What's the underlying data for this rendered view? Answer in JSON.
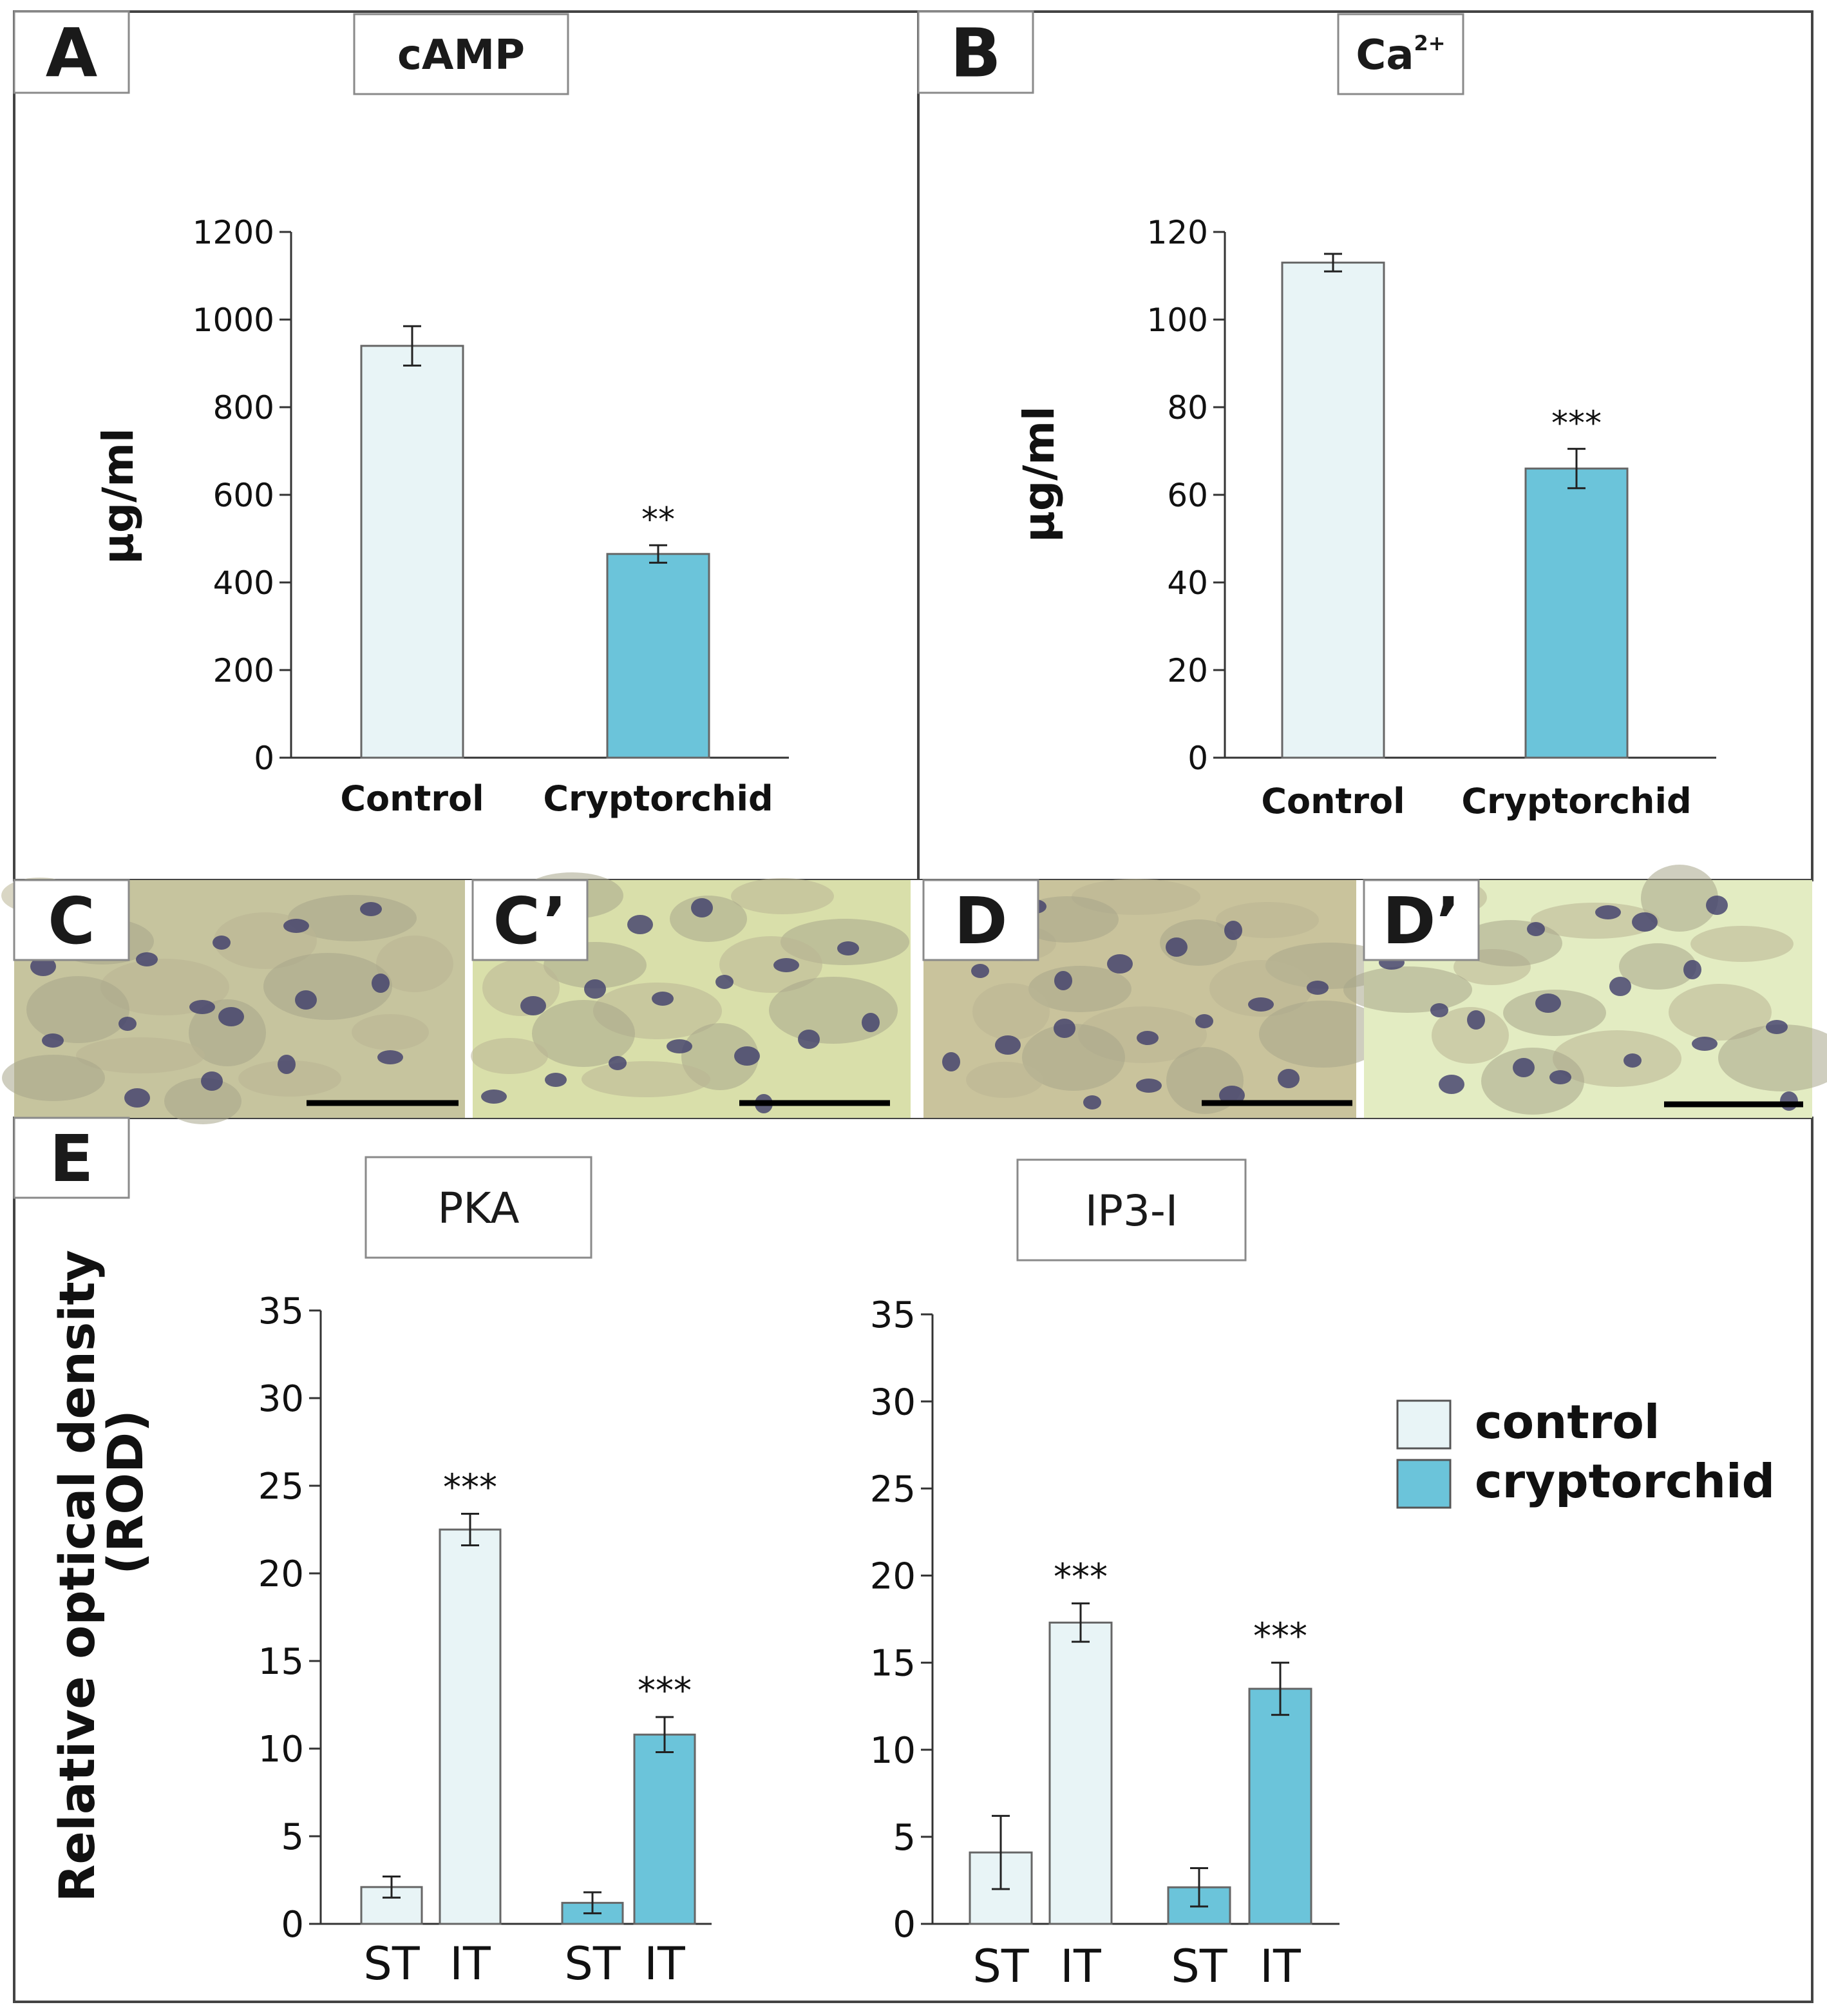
{
  "figure": {
    "colors": {
      "control": "#e8f4f6",
      "cryptorchid": "#6bc4da",
      "outline": "#3a3a3a",
      "frame": "#444444",
      "tissue_bg": "#c9c7a0",
      "nucleus": "#3e3d6b"
    }
  },
  "chart_data": [
    {
      "id": "A",
      "panel_label": "A",
      "title": "cAMP",
      "type": "bar",
      "ylabel": "µg/ml",
      "ylim": [
        0,
        1200
      ],
      "yticks": [
        "0",
        "200",
        "400",
        "600",
        "800",
        "1000",
        "1200"
      ],
      "categories": [
        "Control",
        "Cryptorchid"
      ],
      "values": [
        940,
        465
      ],
      "errors": [
        45,
        20
      ],
      "significance": [
        "",
        "**"
      ],
      "colors": [
        "control",
        "cryptorchid"
      ]
    },
    {
      "id": "B",
      "panel_label": "B",
      "title": "Ca",
      "title_sup": "2+",
      "type": "bar",
      "ylabel": "µg/ml",
      "ylim": [
        0,
        120
      ],
      "yticks": [
        "0",
        "20",
        "40",
        "60",
        "80",
        "100",
        "120"
      ],
      "categories": [
        "Control",
        "Cryptorchid"
      ],
      "values": [
        113,
        66
      ],
      "errors": [
        2,
        4.5
      ],
      "significance": [
        "",
        "***"
      ],
      "colors": [
        "control",
        "cryptorchid"
      ]
    },
    {
      "id": "E-PKA",
      "panel_label": "E",
      "title": "PKA",
      "type": "bar",
      "ylabel": "Relative optical density",
      "ylabel2": "(ROD)",
      "ylim": [
        0,
        35
      ],
      "yticks": [
        "0",
        "5",
        "10",
        "15",
        "20",
        "25",
        "30",
        "35"
      ],
      "categories": [
        "ST",
        "IT",
        "ST",
        "IT"
      ],
      "series": [
        "control",
        "control",
        "cryptorchid",
        "cryptorchid"
      ],
      "values": [
        2.1,
        22.5,
        1.2,
        10.8
      ],
      "errors": [
        0.6,
        0.9,
        0.6,
        1.0
      ],
      "significance": [
        "",
        "***",
        "",
        "***"
      ]
    },
    {
      "id": "E-IP3",
      "title": "IP3-I",
      "type": "bar",
      "ylim": [
        0,
        35
      ],
      "yticks": [
        "0",
        "5",
        "10",
        "15",
        "20",
        "25",
        "30",
        "35"
      ],
      "categories": [
        "ST",
        "IT",
        "ST",
        "IT"
      ],
      "series": [
        "control",
        "control",
        "cryptorchid",
        "cryptorchid"
      ],
      "values": [
        4.1,
        17.3,
        2.1,
        13.5
      ],
      "errors": [
        2.1,
        1.1,
        1.1,
        1.5
      ],
      "significance": [
        "",
        "***",
        "",
        "***"
      ],
      "legend": {
        "position": "right",
        "entries": [
          {
            "label": "control",
            "color": "control"
          },
          {
            "label": "cryptorchid",
            "color": "cryptorchid"
          }
        ]
      }
    }
  ],
  "micrographs": [
    {
      "label": "C"
    },
    {
      "label": "C’"
    },
    {
      "label": "D"
    },
    {
      "label": "D’"
    }
  ]
}
